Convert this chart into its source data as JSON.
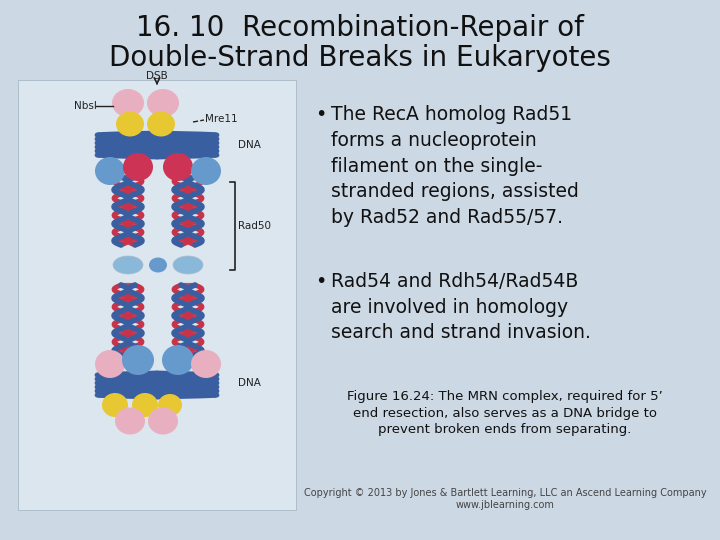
{
  "background_color": "#ccd8e4",
  "title_line1": "16. 10  Recombination-Repair of",
  "title_line2": "Double-Strand Breaks in Eukaryotes",
  "title_fontsize": 20,
  "title_color": "#111111",
  "bullet1_text": "The RecA homolog Rad51\nforms a nucleoprotein\nfilament on the single-\nstranded regions, assisted\nby Rad52 and Rad55/57.",
  "bullet2_text": "Rad54 and Rdh54/Rad54B\nare involved in homology\nsearch and strand invasion.",
  "bullet_fontsize": 13.5,
  "figure_caption": "Figure 16.24: The MRN complex, required for 5’\nend resection, also serves as a DNA bridge to\nprevent broken ends from separating.",
  "caption_fontsize": 9.5,
  "copyright_text": "Copyright © 2013 by Jones & Bartlett Learning, LLC an Ascend Learning Company\nwww.jblearning.com",
  "copyright_fontsize": 7.0,
  "panel_bg": "#dce6ef",
  "blue_dark": "#3a5fa0",
  "blue_mid": "#5b8ec7",
  "blue_light": "#8bb4d8",
  "red_chain": "#c8334a",
  "pink_ball": "#e8afc0",
  "yellow_ball": "#e8c832",
  "red_ball": "#cc3355",
  "blue_ball": "#6699cc",
  "blue_ball2": "#8ab8d8"
}
